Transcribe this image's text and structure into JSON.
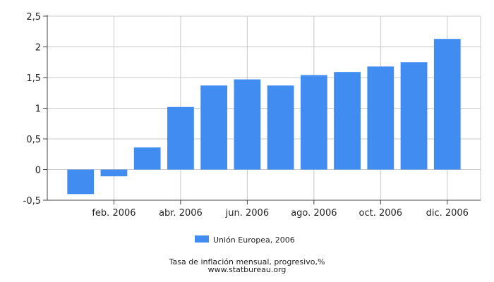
{
  "chart_data": {
    "type": "bar",
    "categories": [
      "ene. 2006",
      "feb. 2006",
      "mar. 2006",
      "abr. 2006",
      "may. 2006",
      "jun. 2006",
      "jul. 2006",
      "ago. 2006",
      "sep. 2006",
      "oct. 2006",
      "nov. 2006",
      "dic. 2006"
    ],
    "x_tick_labels": [
      "feb. 2006",
      "abr. 2006",
      "jun. 2006",
      "ago. 2006",
      "oct. 2006",
      "dic. 2006"
    ],
    "series": [
      {
        "name": "Unión Europea, 2006",
        "values": [
          -0.4,
          -0.11,
          0.36,
          1.02,
          1.37,
          1.47,
          1.37,
          1.54,
          1.59,
          1.68,
          1.75,
          2.13
        ]
      }
    ],
    "ylim": [
      -0.5,
      2.5
    ],
    "y_ticks": [
      -0.5,
      0,
      0.5,
      1,
      1.5,
      2,
      2.5
    ],
    "y_tick_labels": [
      "-0,5",
      "0",
      "0,5",
      "1",
      "1,5",
      "2",
      "2,5"
    ],
    "grid": true,
    "legend_position": "bottom-center",
    "bar_color": "#418cf0"
  },
  "footer": {
    "caption": "Tasa de inflación mensual, progresivo,%",
    "source": "www.statbureau.org"
  }
}
